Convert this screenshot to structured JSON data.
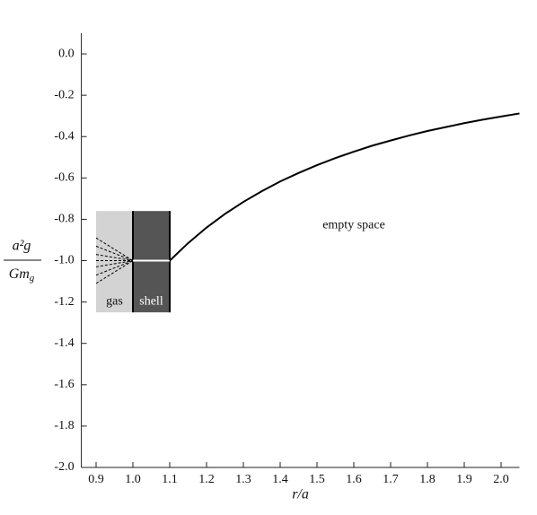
{
  "chart_data": {
    "type": "line",
    "x_label": "r/a",
    "y_label": {
      "numerator": "a²g",
      "denominator": "Gmg"
    },
    "xlim": [
      0.86,
      2.05
    ],
    "ylim": [
      -2.0,
      0.1
    ],
    "xticks": [
      0.9,
      {
        "value": 1.0,
        "label": "1.0"
      },
      1.1,
      1.2,
      1.3,
      1.4,
      1.5,
      1.6,
      1.7,
      1.8,
      1.9,
      {
        "value": 2.0,
        "label": "2.0"
      }
    ],
    "yticks": [
      {
        "value": 0,
        "label": "0.0"
      },
      -0.2,
      -0.4,
      -0.6,
      -0.8,
      {
        "value": -1.0,
        "label": "-1.0"
      },
      -1.2,
      -1.4,
      -1.6,
      -1.8,
      {
        "value": -2.0,
        "label": "-2.0"
      }
    ],
    "regions": [
      {
        "label": "gas",
        "x": [
          0.9,
          1.0
        ],
        "y": [
          -1.25,
          -0.76
        ],
        "color": "#d3d3d3"
      },
      {
        "label": "shell",
        "x": [
          1.0,
          1.1
        ],
        "y": [
          -1.25,
          -0.76
        ],
        "color": "#555555"
      }
    ],
    "series": [
      {
        "color": "#000000",
        "dashed": true,
        "x": [
          0.9,
          1.0
        ],
        "values": [
          -0.89,
          -1.0
        ]
      },
      {
        "color": "#000000",
        "dashed": true,
        "x": [
          0.9,
          1.0
        ],
        "values": [
          -0.93,
          -1.0
        ]
      },
      {
        "color": "#000000",
        "dashed": true,
        "x": [
          0.9,
          1.0
        ],
        "values": [
          -0.97,
          -1.0
        ]
      },
      {
        "color": "#000000",
        "dashed": true,
        "x": [
          0.9,
          1.0
        ],
        "values": [
          -1.0,
          -1.0
        ]
      },
      {
        "color": "#000000",
        "dashed": true,
        "x": [
          0.9,
          1.0
        ],
        "values": [
          -1.03,
          -1.0
        ]
      },
      {
        "color": "#000000",
        "dashed": true,
        "x": [
          0.9,
          1.0
        ],
        "values": [
          -1.07,
          -1.0
        ]
      },
      {
        "color": "#000000",
        "dashed": true,
        "x": [
          0.9,
          1.0
        ],
        "values": [
          -1.11,
          -1.0
        ]
      },
      {
        "color": "#ffffff",
        "dashed": false,
        "x": [
          1.0,
          1.1
        ],
        "values": [
          -1.0,
          -1.0
        ]
      },
      {
        "color": "#000000",
        "dashed": false,
        "x": [
          1.1,
          1.15,
          1.2,
          1.25,
          1.3,
          1.35,
          1.4,
          1.45,
          1.5,
          1.55,
          1.6,
          1.65,
          1.7,
          1.75,
          1.8,
          1.85,
          1.9,
          1.95,
          2.0,
          2.05
        ],
        "values": [
          -1.0,
          -0.915,
          -0.84,
          -0.774,
          -0.716,
          -0.664,
          -0.617,
          -0.576,
          -0.538,
          -0.504,
          -0.473,
          -0.444,
          -0.419,
          -0.395,
          -0.373,
          -0.354,
          -0.335,
          -0.318,
          -0.303,
          -0.288
        ]
      }
    ],
    "annotations": [
      {
        "text": "empty space",
        "x": 1.6,
        "y": -0.83
      }
    ]
  }
}
